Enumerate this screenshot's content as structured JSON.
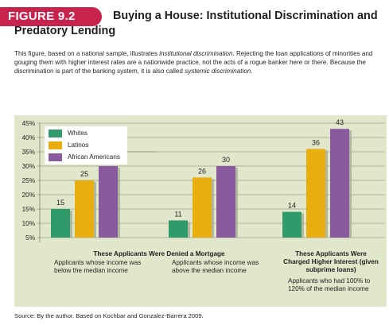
{
  "figure": {
    "label": "FIGURE 9.2",
    "title": "Buying a House: Institutional Discrimination and Predatory Lending"
  },
  "caption": {
    "part1": "This figure, based on a national sample, illustrates ",
    "em1": "institutional discrimination",
    "part2": ". Rejecting the loan applications of minorities and gouging them with higher interest rates are a nationwide practice, not the acts of a rogue banker here or there. Because the discrimination is part of the banking system, it is also called ",
    "em2": "systemic discrimination",
    "part3": "."
  },
  "source": "Source: By the author. Based on Kochbar and Gonzalez-Barrera 2009.",
  "colors": {
    "Whites": "#2f9b6b",
    "Latinos": "#e8ad0f",
    "African Americans": "#8a5a9f",
    "background": "#e1e7ca",
    "badge": "#c8234d"
  },
  "chart_data": {
    "type": "bar",
    "y_ticks": [
      "45%",
      "40%",
      "35%",
      "30%",
      "25%",
      "20%",
      "15%",
      "10%",
      "5%"
    ],
    "ylim": [
      5,
      45
    ],
    "grid": true,
    "legend_position": "top-left",
    "series": [
      {
        "name": "Whites",
        "values": [
          15,
          11,
          14
        ]
      },
      {
        "name": "Latinos",
        "values": [
          25,
          26,
          36
        ]
      },
      {
        "name": "African Americans",
        "values": [
          30,
          30,
          43
        ]
      }
    ],
    "value_labels": [
      [
        "15",
        "25",
        "30"
      ],
      [
        "11",
        "26",
        "30"
      ],
      [
        "14",
        "36",
        "43"
      ]
    ],
    "group_labels": [
      {
        "title": "These Applicants Were Denied a Mortgage",
        "sub": "Applicants whose income was below the median income"
      },
      {
        "title": "",
        "sub": "Applicants whose income was above the median income"
      },
      {
        "title": "These Applicants Were Charged Higher Interest (given subprime loans)",
        "sub": "Applicants who had 100% to 120% of the median income"
      }
    ]
  }
}
